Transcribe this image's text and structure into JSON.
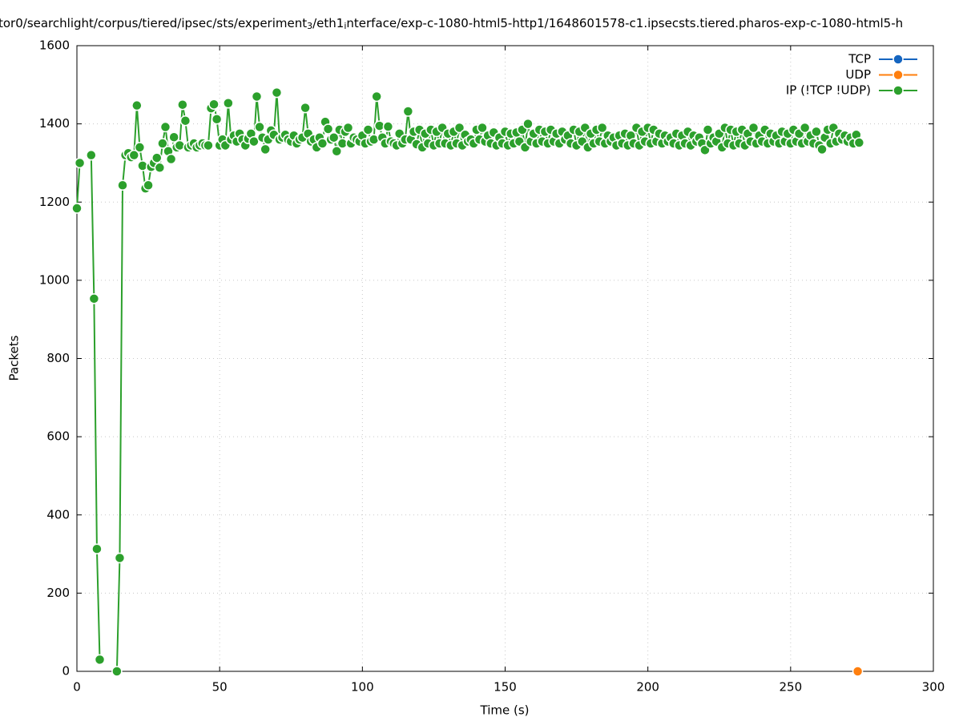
{
  "chart_data": {
    "type": "line",
    "title": [
      "tor0/searchlight/corpus/tiered/ipsec/sts/experiment",
      "3",
      "/eth1",
      "i",
      "nterface/exp-c-1080-html5-http1/1648601578-c1.ipsecsts.tiered.pharos-exp-c-1080-html5-h"
    ],
    "xlabel": "Time (s)",
    "ylabel": "Packets",
    "xlim": [
      0,
      300
    ],
    "xticks": [
      0,
      50,
      100,
      150,
      200,
      250,
      300
    ],
    "ylim": [
      0,
      1600
    ],
    "yticks": [
      0,
      200,
      400,
      600,
      800,
      1000,
      1200,
      1400,
      1600
    ],
    "grid": true,
    "legend": "top-right",
    "series": [
      {
        "name": "TCP",
        "color": "#1565c0",
        "x": [],
        "values": []
      },
      {
        "name": "UDP",
        "color": "#ff7f0e",
        "x": [
          273.5
        ],
        "values": [
          0
        ]
      },
      {
        "name": "IP (!TCP  !UDP)",
        "color": "#2ca02c",
        "x": [
          0,
          1,
          2,
          3,
          4,
          5,
          6,
          7,
          8,
          9,
          10,
          11,
          12,
          13,
          14,
          15,
          16,
          17,
          18,
          19,
          20,
          21,
          22,
          23,
          24,
          25,
          26,
          27,
          28,
          29,
          30,
          31,
          32,
          33,
          34,
          35,
          36,
          37,
          38,
          39,
          40,
          41,
          42,
          43,
          44,
          45,
          46,
          47,
          48,
          49,
          50,
          51,
          52,
          53,
          54,
          55,
          56,
          57,
          58,
          59,
          60,
          61,
          62,
          63,
          64,
          65,
          66,
          67,
          68,
          69,
          70,
          71,
          72,
          73,
          74,
          75,
          76,
          77,
          78,
          79,
          80,
          81,
          82,
          83,
          84,
          85,
          86,
          87,
          88,
          89,
          90,
          91,
          92,
          93,
          94,
          95,
          96,
          97,
          98,
          99,
          100,
          101,
          102,
          103,
          104,
          105,
          106,
          107,
          108,
          109,
          110,
          111,
          112,
          113,
          114,
          115,
          116,
          117,
          118,
          119,
          120,
          121,
          122,
          123,
          124,
          125,
          126,
          127,
          128,
          129,
          130,
          131,
          132,
          133,
          134,
          135,
          136,
          137,
          138,
          139,
          140,
          141,
          142,
          143,
          144,
          145,
          146,
          147,
          148,
          149,
          150,
          151,
          152,
          153,
          154,
          155,
          156,
          157,
          158,
          159,
          160,
          161,
          162,
          163,
          164,
          165,
          166,
          167,
          168,
          169,
          170,
          171,
          172,
          173,
          174,
          175,
          176,
          177,
          178,
          179,
          180,
          181,
          182,
          183,
          184,
          185,
          186,
          187,
          188,
          189,
          190,
          191,
          192,
          193,
          194,
          195,
          196,
          197,
          198,
          199,
          200,
          201,
          202,
          203,
          204,
          205,
          206,
          207,
          208,
          209,
          210,
          211,
          212,
          213,
          214,
          215,
          216,
          217,
          218,
          219,
          220,
          221,
          222,
          223,
          224,
          225,
          226,
          227,
          228,
          229,
          230,
          231,
          232,
          233,
          234,
          235,
          236,
          237,
          238,
          239,
          240,
          241,
          242,
          243,
          244,
          245,
          246,
          247,
          248,
          249,
          250,
          251,
          252,
          253,
          254,
          255,
          256,
          257,
          258,
          259,
          260,
          261,
          262,
          263,
          264,
          265,
          266,
          267,
          268,
          269,
          270,
          271,
          272,
          273,
          274
        ],
        "values": [
          1184,
          1300,
          null,
          null,
          null,
          1320,
          953,
          313,
          30,
          null,
          null,
          null,
          null,
          null,
          0,
          290,
          1243,
          1320,
          1325,
          1315,
          1320,
          1447,
          1340,
          1293,
          1235,
          1243,
          1290,
          1300,
          1313,
          1288,
          1350,
          1392,
          1330,
          1310,
          1366,
          1340,
          1345,
          1449,
          1408,
          1340,
          1345,
          1350,
          1340,
          1345,
          1350,
          1345,
          1345,
          1440,
          1450,
          1412,
          1345,
          1360,
          1345,
          1453,
          1360,
          1370,
          1355,
          1375,
          1360,
          1345,
          1362,
          1375,
          1355,
          1470,
          1392,
          1365,
          1335,
          1360,
          1383,
          1372,
          1480,
          1360,
          1365,
          1372,
          1360,
          1355,
          1370,
          1350,
          1360,
          1365,
          1441,
          1375,
          1355,
          1360,
          1340,
          1365,
          1350,
          1405,
          1387,
          1360,
          1365,
          1330,
          1385,
          1350,
          1380,
          1390,
          1350,
          1365,
          1360,
          1355,
          1370,
          1350,
          1385,
          1355,
          1360,
          1470,
          1395,
          1365,
          1350,
          1393,
          1355,
          1350,
          1345,
          1375,
          1350,
          1360,
          1432,
          1360,
          1380,
          1348,
          1385,
          1340,
          1375,
          1350,
          1385,
          1345,
          1380,
          1350,
          1390,
          1350,
          1375,
          1345,
          1380,
          1350,
          1390,
          1345,
          1372,
          1355,
          1360,
          1350,
          1385,
          1360,
          1390,
          1355,
          1370,
          1350,
          1378,
          1345,
          1365,
          1350,
          1380,
          1345,
          1375,
          1350,
          1378,
          1355,
          1385,
          1340,
          1400,
          1355,
          1375,
          1350,
          1385,
          1355,
          1380,
          1350,
          1385,
          1355,
          1375,
          1350,
          1380,
          1360,
          1370,
          1350,
          1385,
          1345,
          1380,
          1355,
          1390,
          1340,
          1375,
          1350,
          1385,
          1355,
          1390,
          1350,
          1370,
          1355,
          1365,
          1345,
          1370,
          1350,
          1375,
          1345,
          1370,
          1350,
          1390,
          1345,
          1380,
          1355,
          1390,
          1350,
          1385,
          1355,
          1375,
          1350,
          1370,
          1355,
          1365,
          1350,
          1375,
          1345,
          1370,
          1350,
          1380,
          1345,
          1370,
          1355,
          1365,
          1350,
          1333,
          1385,
          1350,
          1365,
          1355,
          1375,
          1340,
          1390,
          1350,
          1385,
          1345,
          1380,
          1350,
          1385,
          1345,
          1375,
          1355,
          1390,
          1350,
          1370,
          1355,
          1385,
          1350,
          1375,
          1355,
          1370,
          1350,
          1380,
          1355,
          1375,
          1350,
          1385,
          1355,
          1375,
          1350,
          1390,
          1355,
          1370,
          1350,
          1380,
          1345,
          1335,
          1365,
          1385,
          1350,
          1390,
          1355,
          1375,
          1360,
          1370,
          1355,
          1365,
          1350,
          1372,
          1352
        ]
      }
    ]
  }
}
